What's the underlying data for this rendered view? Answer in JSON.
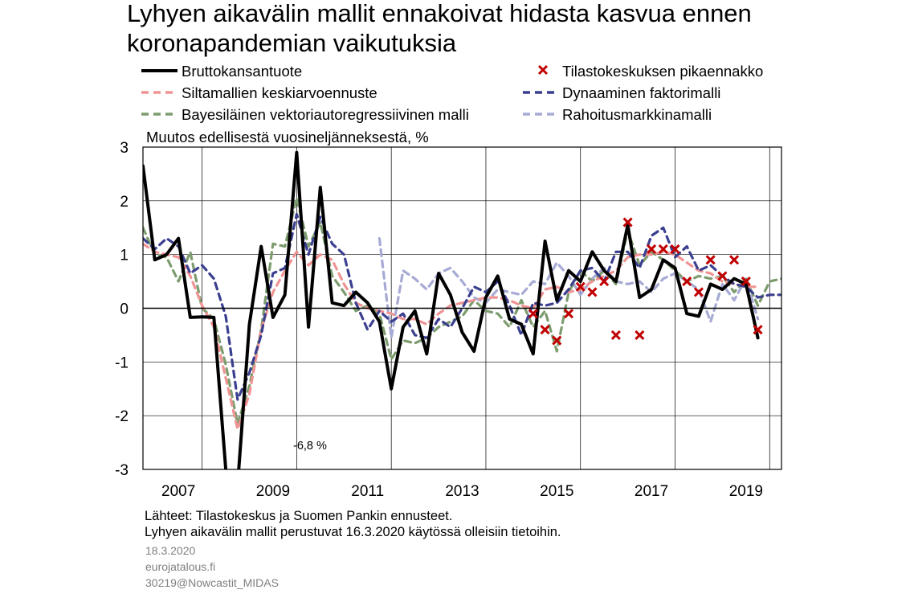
{
  "chart_data": {
    "type": "line",
    "title": "Lyhyen aikavälin mallit ennakoivat hidasta kasvua ennen koronapandemian vaikutuksia",
    "title_lines": [
      "Lyhyen aikavälin mallit ennakoivat hidasta kasvua ennen",
      "koronapandemian vaikutuksia"
    ],
    "ylabel": "Muutos edellisestä vuosineljänneksestä,  %",
    "ylim": [
      -3,
      3
    ],
    "yticks": [
      -3,
      -2,
      -1,
      0,
      1,
      2,
      3
    ],
    "xlim": [
      2006.75,
      2020.25
    ],
    "xticks": [
      "2007",
      "2009",
      "2011",
      "2013",
      "2015",
      "2017",
      "2019"
    ],
    "grid": "vertical and horizontal",
    "legend_position": "top",
    "annotation": "-6,8 %",
    "series": [
      {
        "name": "Bruttokansantuote",
        "color": "#000000",
        "style": "solid",
        "x": [
          2006.75,
          2007.0,
          2007.25,
          2007.5,
          2007.75,
          2008.0,
          2008.25,
          2008.5,
          2008.75,
          2009.0,
          2009.25,
          2009.5,
          2009.75,
          2010.0,
          2010.25,
          2010.5,
          2010.75,
          2011.0,
          2011.25,
          2011.5,
          2011.75,
          2012.0,
          2012.25,
          2012.5,
          2012.75,
          2013.0,
          2013.25,
          2013.5,
          2013.75,
          2014.0,
          2014.25,
          2014.5,
          2014.75,
          2015.0,
          2015.25,
          2015.5,
          2015.75,
          2016.0,
          2016.25,
          2016.5,
          2016.75,
          2017.0,
          2017.25,
          2017.5,
          2017.75,
          2018.0,
          2018.25,
          2018.5,
          2018.75,
          2019.0,
          2019.25,
          2019.5,
          2019.75
        ],
        "values": [
          2.65,
          0.9,
          1.0,
          1.3,
          -0.17,
          -0.16,
          -0.17,
          -3.0,
          -6.8,
          -0.3,
          1.15,
          -0.17,
          0.25,
          2.9,
          -0.35,
          2.25,
          0.1,
          0.05,
          0.3,
          0.1,
          -0.25,
          -1.5,
          -0.35,
          -0.05,
          -0.85,
          0.65,
          0.25,
          -0.45,
          -0.8,
          0.2,
          0.6,
          -0.2,
          -0.3,
          -0.85,
          1.25,
          0.15,
          0.7,
          0.5,
          1.05,
          0.7,
          0.5,
          1.55,
          0.2,
          0.35,
          0.9,
          0.75,
          -0.1,
          -0.15,
          0.45,
          0.35,
          0.55,
          0.45,
          -0.55
        ]
      },
      {
        "name": "Siltamallien keskiarvoennuste",
        "color": "#f09393",
        "style": "dashed",
        "x": [
          2006.75,
          2007.0,
          2007.25,
          2007.5,
          2007.75,
          2008.0,
          2008.25,
          2008.5,
          2008.75,
          2009.0,
          2009.25,
          2009.5,
          2009.75,
          2010.0,
          2010.25,
          2010.5,
          2010.75,
          2011.0,
          2011.25,
          2011.5,
          2011.75,
          2012.0,
          2012.25,
          2012.5,
          2012.75,
          2013.0,
          2013.25,
          2013.5,
          2013.75,
          2014.0,
          2014.25,
          2014.5,
          2014.75,
          2015.0,
          2015.25,
          2015.5,
          2015.75,
          2016.0,
          2016.25,
          2016.5,
          2016.75,
          2017.0,
          2017.25,
          2017.5,
          2017.75,
          2018.0,
          2018.25,
          2018.5,
          2018.75,
          2019.0,
          2019.25,
          2019.5,
          2019.75
        ],
        "values": [
          1.2,
          1.05,
          1.0,
          0.95,
          0.6,
          0.05,
          -0.35,
          -1.3,
          -2.25,
          -1.6,
          -0.4,
          0.3,
          0.7,
          1.05,
          0.8,
          1.0,
          0.9,
          0.45,
          0.1,
          0.0,
          -0.05,
          -0.1,
          -0.2,
          -0.2,
          -0.3,
          -0.1,
          0.05,
          0.1,
          0.15,
          0.2,
          0.2,
          0.15,
          0.05,
          0.0,
          0.35,
          0.4,
          0.3,
          0.35,
          0.5,
          0.6,
          0.7,
          0.95,
          1.0,
          1.0,
          1.05,
          1.0,
          0.85,
          0.7,
          0.65,
          0.5,
          0.45,
          0.4,
          0.4
        ]
      },
      {
        "name": "Bayesiläinen vektoriautoregressiivinen malli",
        "color": "#7d9c6e",
        "style": "dashed",
        "x": [
          2006.75,
          2007.0,
          2007.25,
          2007.5,
          2007.75,
          2008.0,
          2008.25,
          2008.5,
          2008.75,
          2009.0,
          2009.25,
          2009.5,
          2009.75,
          2010.0,
          2010.25,
          2010.5,
          2010.75,
          2011.0,
          2011.25,
          2011.5,
          2011.75,
          2012.0,
          2012.25,
          2012.5,
          2012.75,
          2013.0,
          2013.25,
          2013.5,
          2013.75,
          2014.0,
          2014.25,
          2014.5,
          2014.75,
          2015.0,
          2015.25,
          2015.5,
          2015.75,
          2016.0,
          2016.25,
          2016.5,
          2016.75,
          2017.0,
          2017.25,
          2017.5,
          2017.75,
          2018.0,
          2018.25,
          2018.5,
          2018.75,
          2019.0,
          2019.25,
          2019.5,
          2019.75,
          2020.0,
          2020.25
        ],
        "values": [
          1.5,
          1.0,
          0.95,
          0.5,
          1.05,
          0.0,
          -0.2,
          -1.05,
          -2.15,
          -1.45,
          -0.4,
          1.2,
          1.15,
          2.05,
          1.15,
          1.6,
          0.6,
          0.3,
          -0.05,
          0.05,
          -0.1,
          -0.95,
          -0.6,
          -0.65,
          -0.55,
          -0.35,
          -0.25,
          -0.15,
          0.15,
          -0.05,
          -0.1,
          -0.35,
          0.15,
          -0.35,
          -0.05,
          -0.8,
          0.3,
          0.7,
          0.5,
          0.7,
          0.45,
          1.45,
          0.8,
          1.05,
          0.9,
          0.7,
          0.5,
          0.6,
          0.55,
          0.6,
          0.3,
          0.55,
          0.05,
          0.5,
          0.55
        ]
      },
      {
        "name": "Dynaaminen faktorimalli",
        "color": "#3b3f8f",
        "style": "dashed",
        "x": [
          2006.75,
          2007.0,
          2007.25,
          2007.5,
          2007.75,
          2008.0,
          2008.25,
          2008.5,
          2008.75,
          2009.0,
          2009.25,
          2009.5,
          2009.75,
          2010.0,
          2010.25,
          2010.5,
          2010.75,
          2011.0,
          2011.25,
          2011.5,
          2011.75,
          2012.0,
          2012.25,
          2012.5,
          2012.75,
          2013.0,
          2013.25,
          2013.5,
          2013.75,
          2014.0,
          2014.25,
          2014.5,
          2014.75,
          2015.0,
          2015.25,
          2015.5,
          2015.75,
          2016.0,
          2016.25,
          2016.5,
          2016.75,
          2017.0,
          2017.25,
          2017.5,
          2017.75,
          2018.0,
          2018.25,
          2018.5,
          2018.75,
          2019.0,
          2019.25,
          2019.5,
          2019.75,
          2020.0,
          2020.25
        ],
        "values": [
          1.3,
          1.1,
          1.3,
          1.15,
          0.65,
          0.8,
          0.55,
          -0.15,
          -1.7,
          -1.2,
          -0.5,
          0.65,
          0.75,
          1.75,
          1.0,
          1.7,
          1.2,
          1.0,
          0.1,
          -0.4,
          -0.05,
          -0.25,
          -0.1,
          -0.5,
          -0.55,
          -0.2,
          -0.35,
          0.0,
          0.4,
          0.3,
          0.5,
          0.05,
          -0.5,
          0.1,
          0.05,
          0.1,
          0.35,
          0.7,
          0.75,
          0.5,
          1.05,
          1.05,
          0.75,
          1.35,
          1.5,
          0.95,
          1.15,
          0.7,
          0.8,
          0.6,
          0.45,
          0.4,
          0.2,
          0.25,
          0.25
        ]
      },
      {
        "name": "Rahoitusmarkkinamalli",
        "color": "#a7aad4",
        "style": "dashed",
        "x": [
          2011.75,
          2012.0,
          2012.25,
          2012.5,
          2012.75,
          2013.0,
          2013.25,
          2013.5,
          2013.75,
          2014.0,
          2014.25,
          2014.5,
          2014.75,
          2015.0,
          2015.25,
          2015.5,
          2015.75,
          2016.0,
          2016.25,
          2016.5,
          2016.75,
          2017.0,
          2017.25,
          2017.5,
          2017.75,
          2018.0,
          2018.25,
          2018.5,
          2018.75,
          2019.0,
          2019.25,
          2019.5,
          2019.75
        ],
        "values": [
          1.3,
          -0.55,
          0.7,
          0.55,
          0.35,
          0.65,
          0.75,
          0.5,
          0.2,
          0.1,
          0.35,
          0.3,
          0.25,
          0.5,
          0.45,
          0.85,
          0.6,
          0.25,
          0.55,
          0.75,
          0.5,
          0.45,
          0.5,
          0.3,
          0.55,
          0.65,
          0.5,
          0.35,
          -0.25,
          0.45,
          0.15,
          0.55,
          -0.2
        ]
      }
    ],
    "markers": {
      "name": "Tilastokeskuksen pikaennakko",
      "color": "#c00000",
      "symbol": "x",
      "x": [
        2015.0,
        2015.25,
        2015.5,
        2015.75,
        2016.0,
        2016.25,
        2016.5,
        2016.75,
        2017.0,
        2017.25,
        2017.5,
        2017.75,
        2018.0,
        2018.25,
        2018.5,
        2018.75,
        2019.0,
        2019.25,
        2019.5,
        2019.75
      ],
      "values": [
        -0.1,
        -0.4,
        -0.6,
        -0.1,
        0.4,
        0.3,
        0.5,
        -0.5,
        1.6,
        -0.5,
        1.1,
        1.1,
        1.1,
        0.5,
        0.3,
        0.9,
        0.6,
        0.9,
        0.5,
        -0.4
      ]
    }
  },
  "sources": [
    "Lähteet: Tilastokeskus ja Suomen Pankin ennusteet.",
    "Lyhyen aikavälin  mallit perustuvat 16.3.2020 käytössä olleisiin tietoihin."
  ],
  "footer": {
    "date": "18.3.2020",
    "site": "eurojatalous.fi",
    "code": "30219@Nowcastit_MIDAS"
  }
}
